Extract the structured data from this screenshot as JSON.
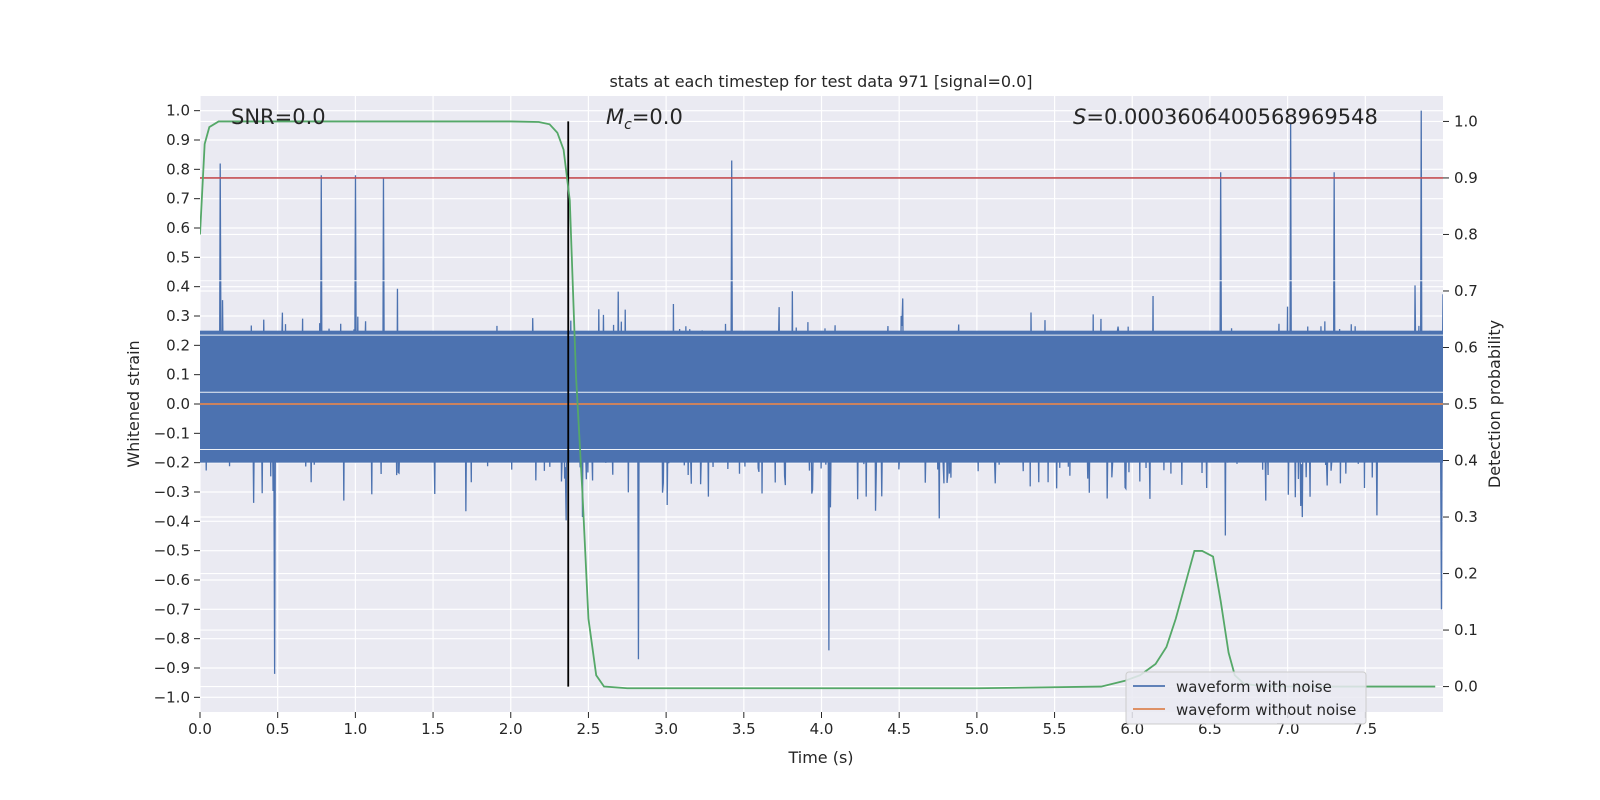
{
  "chart_data": {
    "type": "line",
    "title": "stats at each timestep for test data 971 [signal=0.0]",
    "xlabel": "Time (s)",
    "ylabel": "Whitened strain",
    "y2label": "Detection probability",
    "xlim": [
      0.0,
      8.0
    ],
    "ylim": [
      -1.05,
      1.05
    ],
    "y2lim": [
      -0.045,
      1.045
    ],
    "x_ticks": [
      "0.0",
      "0.5",
      "1.0",
      "1.5",
      "2.0",
      "2.5",
      "3.0",
      "3.5",
      "4.0",
      "4.5",
      "5.0",
      "5.5",
      "6.0",
      "6.5",
      "7.0",
      "7.5"
    ],
    "y_ticks": [
      "1.0",
      "0.9",
      "0.8",
      "0.7",
      "0.6",
      "0.5",
      "0.4",
      "0.3",
      "0.2",
      "0.1",
      "0.0",
      "-0.1",
      "-0.2",
      "-0.3",
      "-0.4",
      "-0.5",
      "-0.6",
      "-0.7",
      "-0.8",
      "-0.9",
      "-1.0"
    ],
    "y2_ticks": [
      "1.0",
      "0.9",
      "0.8",
      "0.7",
      "0.6",
      "0.5",
      "0.4",
      "0.3",
      "0.2",
      "0.1",
      "0.0"
    ],
    "annotations": {
      "snr": "SNR=0.0",
      "mc_symbol": "M",
      "mc_sub": "c",
      "mc_value": "=0.0",
      "s_symbol": "S",
      "s_value": "=0.0003606400568969548"
    },
    "threshold": {
      "value": 0.9,
      "axis": "right",
      "color": "#c44e52"
    },
    "peak_marker": {
      "x": 2.37,
      "y_from": 0.0,
      "y_to": 1.0,
      "axis": "right",
      "color": "#000000"
    },
    "legend": {
      "location": "lower-right",
      "entries": [
        {
          "label": "waveform with noise",
          "color": "#4c72b0"
        },
        {
          "label": "waveform without noise",
          "color": "#dd8452"
        }
      ]
    },
    "series": [
      {
        "name": "waveform with noise",
        "axis": "left",
        "color": "#4c72b0",
        "style": "noise",
        "seed": 971,
        "samples": 1600,
        "dense_band": [
          -0.2,
          0.25
        ],
        "max": 1.0,
        "min": -0.92,
        "spikes": [
          {
            "x": 0.13,
            "y": 0.82
          },
          {
            "x": 0.48,
            "y": -0.92
          },
          {
            "x": 0.78,
            "y": 0.78
          },
          {
            "x": 1.0,
            "y": 0.78
          },
          {
            "x": 1.18,
            "y": 0.77
          },
          {
            "x": 2.82,
            "y": -0.87
          },
          {
            "x": 3.42,
            "y": 0.83
          },
          {
            "x": 4.05,
            "y": -0.84
          },
          {
            "x": 6.57,
            "y": 0.79
          },
          {
            "x": 7.02,
            "y": 0.96
          },
          {
            "x": 7.3,
            "y": 0.79
          },
          {
            "x": 7.86,
            "y": 1.0
          },
          {
            "x": 7.99,
            "y": -0.7
          }
        ]
      },
      {
        "name": "waveform without noise",
        "axis": "left",
        "color": "#dd8452",
        "x": [
          0.0,
          8.0
        ],
        "y": [
          0.0,
          0.0
        ]
      },
      {
        "name": "detection probability",
        "axis": "right",
        "color": "#55a868",
        "x": [
          0.0,
          0.03,
          0.06,
          0.12,
          0.2,
          1.0,
          2.0,
          2.18,
          2.25,
          2.3,
          2.34,
          2.38,
          2.42,
          2.46,
          2.5,
          2.55,
          2.6,
          2.75,
          3.0,
          5.0,
          5.8,
          5.95,
          6.05,
          6.15,
          6.22,
          6.28,
          6.35,
          6.4,
          6.45,
          6.52,
          6.57,
          6.62,
          6.66,
          6.72,
          6.8,
          7.0,
          7.95
        ],
        "y": [
          0.8,
          0.96,
          0.99,
          1.0,
          1.0,
          1.0,
          1.0,
          0.999,
          0.995,
          0.98,
          0.95,
          0.86,
          0.55,
          0.35,
          0.12,
          0.02,
          0.0,
          -0.003,
          -0.003,
          -0.003,
          0.0,
          0.01,
          0.02,
          0.04,
          0.07,
          0.12,
          0.19,
          0.24,
          0.24,
          0.23,
          0.15,
          0.06,
          0.02,
          0.005,
          0.002,
          0.0,
          0.0
        ]
      }
    ]
  }
}
